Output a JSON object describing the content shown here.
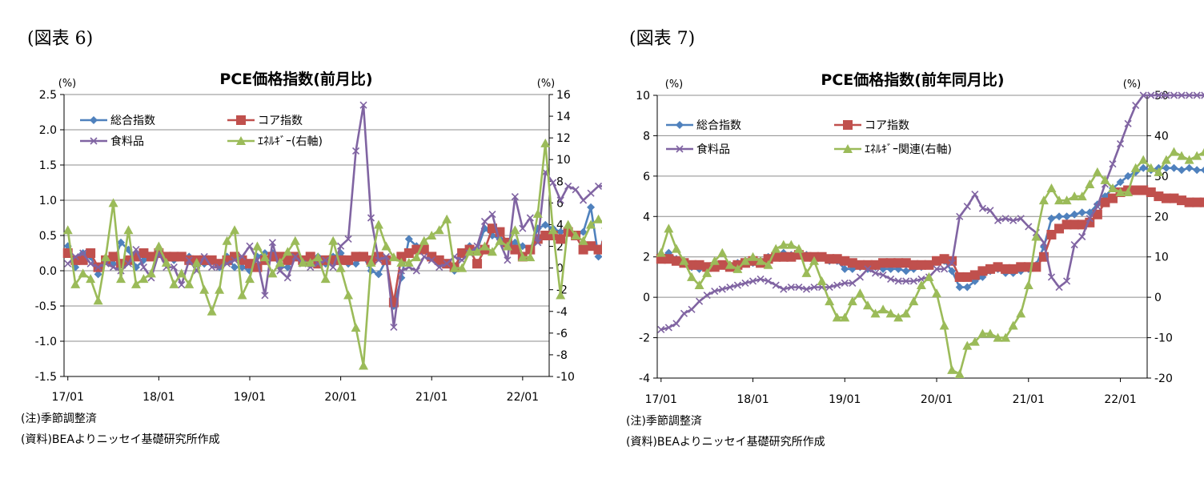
{
  "charts": [
    {
      "figure_label": "(図表 6)",
      "notes": [
        "(注)季節調整済",
        "(資料)BEAよりニッセイ基礎研究所作成"
      ],
      "chart_data": {
        "type": "line",
        "title": "PCE価格指数(前月比)",
        "left_unit": "(%)",
        "right_unit": "(%)",
        "left_ylim": [
          -1.5,
          2.5
        ],
        "left_ticks": [
          "2.5",
          "2.0",
          "1.5",
          "1.0",
          "0.5",
          "0.0",
          "-0.5",
          "-1.0",
          "-1.5"
        ],
        "right_ylim": [
          -10,
          16
        ],
        "right_ticks": [
          "16",
          "14",
          "12",
          "10",
          "8",
          "6",
          "4",
          "2",
          "0",
          "-2",
          "-4",
          "-6",
          "-8",
          "-10"
        ],
        "x_range": [
          "2017-01",
          "2022-04"
        ],
        "x_tick_labels": [
          "17/01",
          "18/01",
          "19/01",
          "20/01",
          "21/01",
          "22/01"
        ],
        "grid": true,
        "legend": [
          "総合指数",
          "コア指数",
          "食料品",
          "ｴﾈﾙｷﾞｰ(右軸)"
        ],
        "series": [
          {
            "name": "総合指数",
            "axis": "left",
            "color": "#4F81BD",
            "marker": "diamond",
            "values": [
              0.35,
              0.05,
              0.25,
              0.2,
              -0.05,
              0.15,
              0.1,
              0.4,
              0.3,
              0.05,
              0.15,
              0.2,
              0.3,
              0.2,
              0.15,
              0.2,
              0.2,
              0.1,
              0.1,
              0.15,
              0.05,
              0.2,
              0.05,
              0.05,
              0.0,
              0.2,
              0.25,
              0.25,
              0.05,
              0.05,
              0.2,
              0.15,
              0.15,
              0.2,
              0.1,
              0.2,
              0.25,
              0.1,
              0.1,
              0.2,
              0.0,
              -0.05,
              0.15,
              -0.5,
              -0.1,
              0.45,
              0.35,
              0.3,
              0.2,
              0.1,
              0.1,
              0.0,
              0.25,
              0.35,
              0.3,
              0.6,
              0.5,
              0.45,
              0.35,
              0.4,
              0.35,
              0.3,
              0.6,
              0.65,
              0.6,
              0.55,
              0.6,
              0.5,
              0.55,
              0.9,
              0.2,
              0.6
            ]
          },
          {
            "name": "コア指数",
            "axis": "left",
            "color": "#C0504D",
            "marker": "square",
            "values": [
              0.25,
              0.15,
              0.15,
              0.25,
              0.05,
              0.15,
              0.2,
              0.1,
              0.15,
              0.2,
              0.25,
              0.2,
              0.25,
              0.2,
              0.2,
              0.2,
              0.15,
              0.15,
              0.15,
              0.15,
              0.1,
              0.15,
              0.2,
              0.15,
              0.1,
              0.05,
              0.15,
              0.2,
              0.2,
              0.15,
              0.2,
              0.15,
              0.2,
              0.1,
              0.15,
              0.15,
              0.15,
              0.15,
              0.2,
              0.2,
              0.15,
              0.2,
              0.15,
              -0.45,
              0.2,
              0.25,
              0.3,
              0.3,
              0.2,
              0.15,
              0.1,
              0.05,
              0.25,
              0.3,
              0.1,
              0.3,
              0.6,
              0.55,
              0.4,
              0.3,
              0.2,
              0.3,
              0.45,
              0.5,
              0.5,
              0.45,
              0.55,
              0.5,
              0.3,
              0.35,
              0.3,
              0.35
            ]
          },
          {
            "name": "食料品",
            "axis": "left",
            "color": "#8064A2",
            "marker": "x",
            "values": [
              0.1,
              0.2,
              0.25,
              0.1,
              0.05,
              0.1,
              0.05,
              0.0,
              0.1,
              0.3,
              0.05,
              -0.1,
              0.25,
              0.05,
              0.05,
              -0.2,
              0.15,
              0.0,
              0.2,
              0.05,
              0.05,
              0.1,
              0.15,
              0.2,
              0.35,
              0.15,
              -0.35,
              0.4,
              0.0,
              -0.1,
              0.2,
              0.1,
              0.05,
              0.1,
              0.15,
              0.05,
              0.35,
              0.45,
              1.7,
              2.35,
              0.75,
              0.15,
              0.2,
              -0.8,
              0.0,
              0.05,
              0.0,
              0.2,
              0.15,
              0.05,
              0.1,
              0.2,
              0.15,
              0.25,
              0.35,
              0.7,
              0.8,
              0.4,
              0.15,
              1.05,
              0.6,
              0.75,
              0.4,
              1.4,
              1.25,
              1.0,
              1.2,
              1.15,
              1.0,
              1.1,
              1.2,
              1.2
            ]
          },
          {
            "name": "ｴﾈﾙｷﾞｰ(右軸)",
            "axis": "right",
            "color": "#9BBB59",
            "marker": "triangle",
            "values": [
              3.5,
              -1.5,
              -0.5,
              -1.0,
              -3.0,
              1.0,
              6.0,
              -1.0,
              3.5,
              -1.5,
              -1.0,
              -0.5,
              2.0,
              0.5,
              -1.5,
              -0.5,
              -1.5,
              0.5,
              -2.0,
              -4.0,
              -2.0,
              2.5,
              3.5,
              -2.5,
              -1.0,
              2.0,
              1.0,
              -0.5,
              0.5,
              1.5,
              2.5,
              0.5,
              0.5,
              1.0,
              -1.0,
              2.5,
              0.0,
              -2.5,
              -5.5,
              -9.0,
              0.5,
              4.0,
              2.0,
              1.0,
              0.5,
              0.5,
              1.0,
              2.5,
              3.0,
              3.5,
              4.5,
              0.0,
              0.0,
              1.5,
              1.5,
              2.0,
              1.5,
              2.5,
              2.0,
              3.5,
              1.0,
              1.0,
              5.0,
              11.5,
              3.5,
              -2.5,
              4.0,
              3.0,
              2.5,
              4.0,
              4.5,
              4.0
            ]
          }
        ]
      }
    },
    {
      "figure_label": "(図表 7)",
      "notes": [
        "(注)季節調整済",
        "(資料)BEAよりニッセイ基礎研究所作成"
      ],
      "chart_data": {
        "type": "line",
        "title": "PCE価格指数(前年同月比)",
        "left_unit": "(%)",
        "right_unit": "(%)",
        "left_ylim": [
          -4,
          10
        ],
        "left_ticks": [
          "10",
          "8",
          "6",
          "4",
          "2",
          "0",
          "-2",
          "-4"
        ],
        "right_ylim": [
          -20,
          50
        ],
        "right_ticks": [
          "50",
          "40",
          "30",
          "20",
          "10",
          "0",
          "-10",
          "-20"
        ],
        "x_range": [
          "2017-01",
          "2022-04"
        ],
        "x_tick_labels": [
          "17/01",
          "18/01",
          "19/01",
          "20/01",
          "21/01",
          "22/01"
        ],
        "grid": true,
        "legend": [
          "総合指数",
          "コア指数",
          "食料品",
          "ｴﾈﾙｷﾞｰ関連(右軸)"
        ],
        "series": [
          {
            "name": "総合指数",
            "axis": "left",
            "color": "#4F81BD",
            "marker": "diamond",
            "values": [
              2.0,
              2.2,
              1.9,
              1.7,
              1.5,
              1.4,
              1.4,
              1.5,
              1.6,
              1.6,
              1.7,
              1.7,
              1.7,
              1.8,
              2.0,
              2.1,
              2.2,
              2.1,
              2.1,
              2.1,
              2.0,
              2.0,
              1.8,
              1.8,
              1.4,
              1.4,
              1.5,
              1.4,
              1.5,
              1.4,
              1.4,
              1.4,
              1.3,
              1.4,
              1.5,
              1.6,
              1.8,
              1.8,
              1.3,
              0.5,
              0.5,
              0.8,
              1.0,
              1.3,
              1.4,
              1.2,
              1.2,
              1.3,
              1.4,
              1.6,
              2.5,
              3.9,
              4.0,
              4.0,
              4.1,
              4.2,
              4.2,
              4.6,
              5.0,
              5.4,
              5.7,
              6.0,
              6.2,
              6.4,
              6.3,
              6.4,
              6.4,
              6.4,
              6.3,
              6.4,
              6.3,
              6.3
            ]
          },
          {
            "name": "コア指数",
            "axis": "left",
            "color": "#C0504D",
            "marker": "square",
            "values": [
              1.9,
              1.9,
              1.8,
              1.7,
              1.6,
              1.6,
              1.5,
              1.5,
              1.6,
              1.5,
              1.6,
              1.7,
              1.8,
              1.7,
              1.9,
              2.0,
              2.0,
              2.0,
              2.1,
              2.0,
              2.0,
              2.0,
              1.9,
              1.9,
              1.8,
              1.7,
              1.6,
              1.6,
              1.6,
              1.7,
              1.7,
              1.7,
              1.7,
              1.6,
              1.6,
              1.6,
              1.8,
              1.9,
              1.8,
              1.0,
              1.0,
              1.1,
              1.3,
              1.4,
              1.5,
              1.4,
              1.4,
              1.5,
              1.5,
              1.5,
              2.0,
              3.1,
              3.4,
              3.6,
              3.6,
              3.6,
              3.7,
              4.1,
              4.7,
              4.9,
              5.2,
              5.3,
              5.3,
              5.3,
              5.2,
              5.0,
              4.9,
              4.9,
              4.8,
              4.7,
              4.7,
              4.7
            ]
          },
          {
            "name": "食料品",
            "axis": "left",
            "color": "#8064A2",
            "marker": "x",
            "values": [
              -1.6,
              -1.5,
              -1.3,
              -0.8,
              -0.6,
              -0.2,
              0.1,
              0.3,
              0.4,
              0.5,
              0.6,
              0.7,
              0.8,
              0.9,
              0.8,
              0.6,
              0.4,
              0.5,
              0.5,
              0.4,
              0.5,
              0.5,
              0.5,
              0.6,
              0.7,
              0.7,
              1.0,
              1.4,
              1.2,
              1.1,
              0.9,
              0.8,
              0.8,
              0.8,
              0.9,
              1.0,
              1.4,
              1.4,
              1.7,
              4.0,
              4.5,
              5.1,
              4.4,
              4.3,
              3.8,
              3.9,
              3.8,
              3.9,
              3.5,
              3.2,
              2.7,
              1.0,
              0.5,
              0.8,
              2.6,
              3.0,
              3.9,
              4.5,
              5.6,
              6.6,
              7.6,
              8.6,
              9.5,
              10.0,
              10.0,
              10.0,
              10.0,
              10.0,
              10.0,
              10.0,
              10.0,
              10.0
            ]
          },
          {
            "name": "ｴﾈﾙｷﾞｰ関連(右軸)",
            "axis": "right",
            "color": "#9BBB59",
            "marker": "triangle",
            "values": [
              11,
              17,
              12,
              9,
              5,
              3,
              6,
              9,
              11,
              8,
              7,
              9,
              10,
              9,
              8,
              12,
              13,
              13,
              12,
              6,
              9,
              4,
              -1,
              -5,
              -5,
              -1,
              1,
              -2,
              -4,
              -3,
              -4,
              -5,
              -4,
              -1,
              3,
              5,
              1,
              -7,
              -18,
              -19,
              -12,
              -11,
              -9,
              -9,
              -10,
              -10,
              -7,
              -4,
              3,
              15,
              24,
              27,
              24,
              24,
              25,
              25,
              28,
              31,
              29,
              27,
              26,
              26,
              32,
              34,
              32,
              31,
              34,
              36,
              35,
              34,
              35,
              36
            ]
          }
        ]
      }
    }
  ]
}
